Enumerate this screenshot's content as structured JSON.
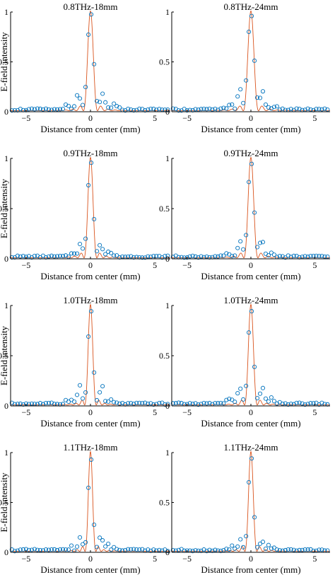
{
  "figure": {
    "ylabel": "E-field intensity",
    "xlabel": "Distance from center (mm)"
  },
  "colors": {
    "fit_line": "#d9541e",
    "data_marker": "#0072bd",
    "axis": "#000000"
  },
  "chart_data": [
    {
      "type": "scatter",
      "title": "0.8THz-18mm",
      "xlabel": "Distance from center (mm)",
      "ylabel": "E-field intensity",
      "xlim": [
        -6.2,
        6.2
      ],
      "ylim": [
        0,
        1
      ],
      "xticks": [
        -5,
        0,
        5
      ],
      "yticks": [
        0,
        0.5,
        1
      ],
      "series": [
        {
          "kind": "line",
          "peak": 1.0,
          "lobe_period": 0.55
        },
        {
          "kind": "markers",
          "peak": 0.98,
          "side_lobe": 0.2,
          "side_lobe_x": 0.95
        }
      ]
    },
    {
      "type": "scatter",
      "title": "0.8THz-24mm",
      "xlabel": "Distance from center (mm)",
      "ylabel": "",
      "xlim": [
        -6.2,
        6.2
      ],
      "ylim": [
        0,
        1
      ],
      "xticks": [
        -5,
        0,
        5
      ],
      "yticks": [
        0,
        0.5,
        1
      ],
      "series": [
        {
          "kind": "line",
          "peak": 1.0,
          "lobe_period": 0.6
        },
        {
          "kind": "markers",
          "peak": 0.96,
          "side_lobe": 0.23,
          "side_lobe_x": 0.9
        }
      ]
    },
    {
      "type": "scatter",
      "title": "0.9THz-18mm",
      "xlabel": "Distance from center (mm)",
      "ylabel": "E-field intensity",
      "xlim": [
        -6.2,
        6.2
      ],
      "ylim": [
        0,
        1
      ],
      "xticks": [
        -5,
        0,
        5
      ],
      "yticks": [
        0,
        0.5,
        1
      ],
      "series": [
        {
          "kind": "line",
          "peak": 1.0,
          "lobe_period": 0.5
        },
        {
          "kind": "markers",
          "peak": 0.98,
          "side_lobe": 0.15,
          "side_lobe_x": 0.8
        }
      ]
    },
    {
      "type": "scatter",
      "title": "0.9THz-24mm",
      "xlabel": "Distance from center (mm)",
      "ylabel": "",
      "xlim": [
        -6.2,
        6.2
      ],
      "ylim": [
        0,
        1
      ],
      "xticks": [
        -5,
        0,
        5
      ],
      "yticks": [
        0,
        0.5,
        1
      ],
      "series": [
        {
          "kind": "line",
          "peak": 1.0,
          "lobe_period": 0.55
        },
        {
          "kind": "markers",
          "peak": 0.95,
          "side_lobe": 0.2,
          "side_lobe_x": 0.85
        }
      ]
    },
    {
      "type": "scatter",
      "title": "1.0THz-18mm",
      "xlabel": "Distance from center (mm)",
      "ylabel": "E-field intensity",
      "xlim": [
        -6.2,
        6.2
      ],
      "ylim": [
        0,
        1
      ],
      "xticks": [
        -5,
        0,
        5
      ],
      "yticks": [
        0,
        0.5,
        1
      ],
      "series": [
        {
          "kind": "line",
          "peak": 1.0,
          "lobe_period": 0.45
        },
        {
          "kind": "markers",
          "peak": 0.98,
          "side_lobe": 0.2,
          "side_lobe_x": 0.85
        }
      ]
    },
    {
      "type": "scatter",
      "title": "1.0THz-24mm",
      "xlabel": "Distance from center (mm)",
      "ylabel": "",
      "xlim": [
        -6.2,
        6.2
      ],
      "ylim": [
        0,
        1
      ],
      "xticks": [
        -5,
        0,
        5
      ],
      "yticks": [
        0,
        0.5,
        1
      ],
      "series": [
        {
          "kind": "line",
          "peak": 1.0,
          "lobe_period": 0.5
        },
        {
          "kind": "markers",
          "peak": 0.97,
          "side_lobe": 0.18,
          "side_lobe_x": 0.9
        }
      ]
    },
    {
      "type": "scatter",
      "title": "1.1THz-18mm",
      "xlabel": "Distance from center (mm)",
      "ylabel": "E-field intensity",
      "xlim": [
        -6.2,
        6.2
      ],
      "ylim": [
        0,
        1
      ],
      "xticks": [
        -5,
        0,
        5
      ],
      "yticks": [
        0,
        0.5,
        1
      ],
      "series": [
        {
          "kind": "line",
          "peak": 1.0,
          "lobe_period": 0.42
        },
        {
          "kind": "markers",
          "peak": 0.97,
          "side_lobe": 0.15,
          "side_lobe_x": 0.8
        }
      ]
    },
    {
      "type": "scatter",
      "title": "1.1THz-24mm",
      "xlabel": "Distance from center (mm)",
      "ylabel": "",
      "xlim": [
        -6.2,
        6.2
      ],
      "ylim": [
        0,
        1
      ],
      "xticks": [
        -5,
        0,
        5
      ],
      "yticks": [
        0,
        0.5,
        1
      ],
      "series": [
        {
          "kind": "line",
          "peak": 1.0,
          "lobe_period": 0.47
        },
        {
          "kind": "markers",
          "peak": 0.96,
          "side_lobe": 0.12,
          "side_lobe_x": 0.85
        }
      ]
    }
  ]
}
